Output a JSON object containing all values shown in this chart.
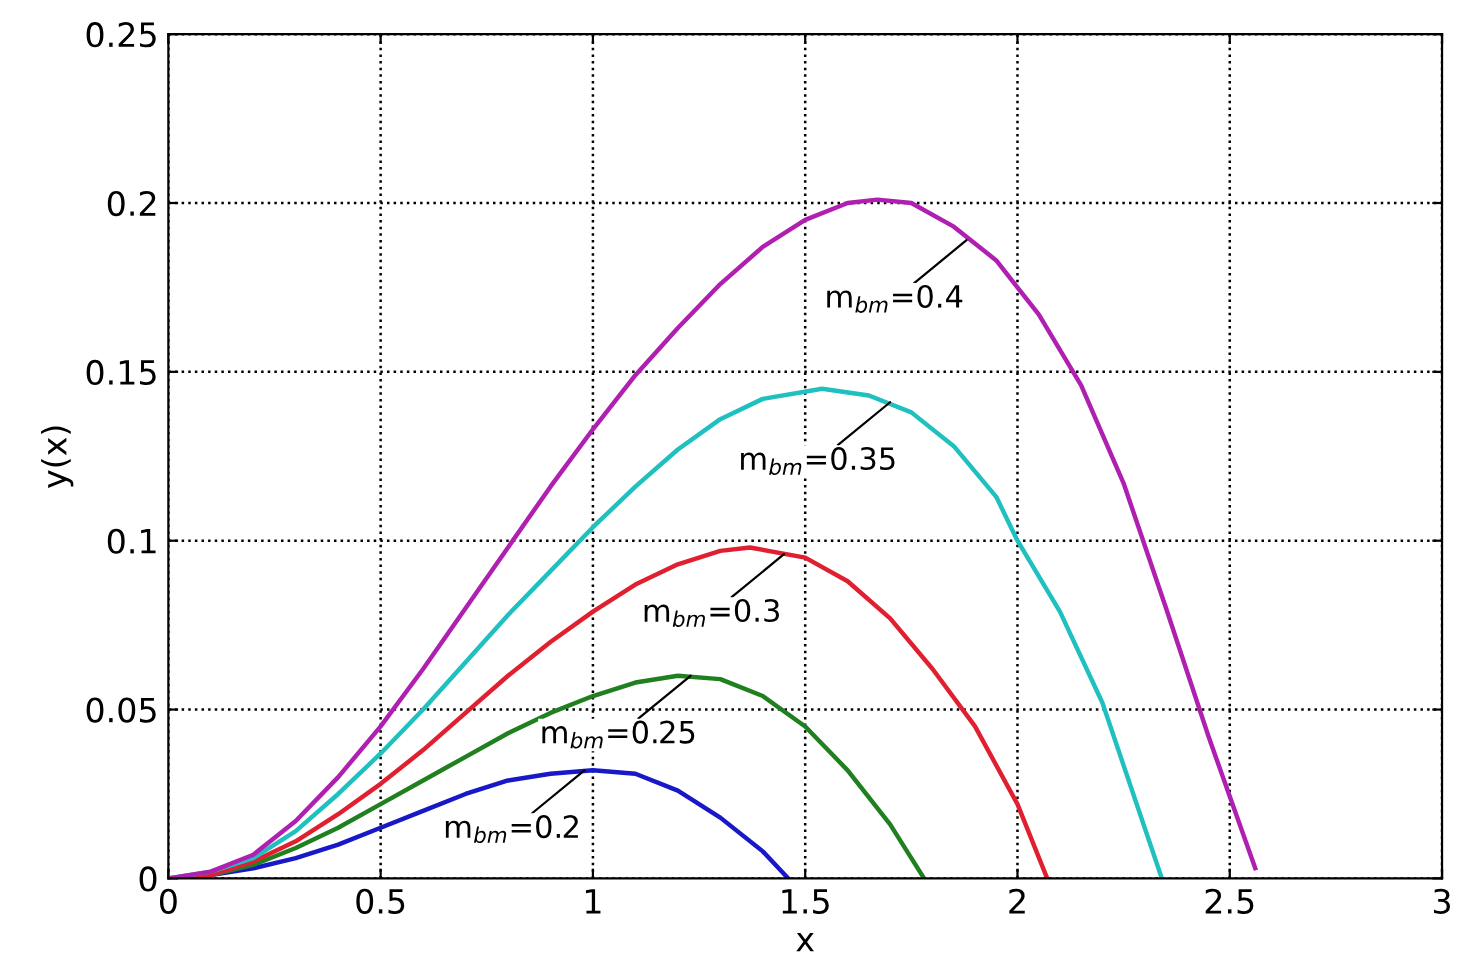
{
  "chart_data": {
    "type": "line",
    "xlabel": "x",
    "ylabel": "y(x)",
    "xlim": [
      0,
      3
    ],
    "ylim": [
      0,
      0.25
    ],
    "xticks": [
      0,
      0.5,
      1,
      1.5,
      2,
      2.5,
      3
    ],
    "yticks": [
      0,
      0.05,
      0.1,
      0.15,
      0.2,
      0.25
    ],
    "grid": true,
    "line_style": "solid",
    "series": [
      {
        "color": "#1818c8",
        "x": [
          0,
          0.1,
          0.2,
          0.3,
          0.4,
          0.5,
          0.6,
          0.7,
          0.8,
          0.9,
          1.0,
          1.1,
          1.2,
          1.3,
          1.4,
          1.46
        ],
        "values": [
          0,
          0.001,
          0.003,
          0.006,
          0.01,
          0.015,
          0.02,
          0.025,
          0.029,
          0.031,
          0.032,
          0.031,
          0.026,
          0.018,
          0.008,
          0
        ]
      },
      {
        "color": "#208020",
        "x": [
          0,
          0.1,
          0.2,
          0.3,
          0.4,
          0.5,
          0.6,
          0.7,
          0.8,
          0.9,
          1.0,
          1.1,
          1.2,
          1.3,
          1.4,
          1.5,
          1.6,
          1.7,
          1.78
        ],
        "values": [
          0,
          0.001,
          0.004,
          0.009,
          0.015,
          0.022,
          0.029,
          0.036,
          0.043,
          0.049,
          0.054,
          0.058,
          0.06,
          0.059,
          0.054,
          0.045,
          0.032,
          0.016,
          0
        ]
      },
      {
        "color": "#e02030",
        "x": [
          0,
          0.1,
          0.2,
          0.3,
          0.4,
          0.5,
          0.6,
          0.7,
          0.8,
          0.9,
          1.0,
          1.1,
          1.2,
          1.3,
          1.37,
          1.5,
          1.6,
          1.7,
          1.8,
          1.9,
          2.0,
          2.07
        ],
        "values": [
          0,
          0.001,
          0.005,
          0.011,
          0.019,
          0.028,
          0.038,
          0.049,
          0.06,
          0.07,
          0.079,
          0.087,
          0.093,
          0.097,
          0.098,
          0.095,
          0.088,
          0.077,
          0.062,
          0.045,
          0.022,
          0
        ]
      },
      {
        "color": "#20c0c0",
        "x": [
          0,
          0.1,
          0.2,
          0.3,
          0.4,
          0.5,
          0.6,
          0.7,
          0.8,
          0.9,
          1.0,
          1.1,
          1.2,
          1.3,
          1.4,
          1.54,
          1.65,
          1.75,
          1.85,
          1.95,
          2.0,
          2.1,
          2.2,
          2.34
        ],
        "values": [
          0,
          0.002,
          0.006,
          0.014,
          0.025,
          0.037,
          0.05,
          0.064,
          0.078,
          0.091,
          0.104,
          0.116,
          0.127,
          0.136,
          0.142,
          0.145,
          0.143,
          0.138,
          0.128,
          0.113,
          0.1,
          0.079,
          0.052,
          0
        ]
      },
      {
        "color": "#b020b0",
        "x": [
          0,
          0.1,
          0.2,
          0.3,
          0.4,
          0.5,
          0.6,
          0.7,
          0.8,
          0.9,
          1.0,
          1.1,
          1.2,
          1.3,
          1.4,
          1.5,
          1.6,
          1.67,
          1.75,
          1.85,
          1.95,
          2.05,
          2.15,
          2.25,
          2.35,
          2.45,
          2.56
        ],
        "values": [
          0,
          0.002,
          0.007,
          0.017,
          0.03,
          0.045,
          0.062,
          0.08,
          0.098,
          0.116,
          0.133,
          0.149,
          0.163,
          0.176,
          0.187,
          0.195,
          0.2,
          0.201,
          0.2,
          0.193,
          0.183,
          0.167,
          0.146,
          0.117,
          0.08,
          0.042,
          0.003
        ]
      }
    ],
    "annotations": [
      {
        "text": "m$_{bm}$=0.2",
        "x": 0.98,
        "y": 0.032
      },
      {
        "text": "m$_{bm}$=0.25",
        "x": 1.23,
        "y": 0.06
      },
      {
        "text": "m$_{bm}$=0.3",
        "x": 1.45,
        "y": 0.096
      },
      {
        "text": "m$_{bm}$=0.35",
        "x": 1.7,
        "y": 0.141
      },
      {
        "text": "m$_{bm}$=0.4",
        "x": 1.88,
        "y": 0.189
      }
    ]
  }
}
